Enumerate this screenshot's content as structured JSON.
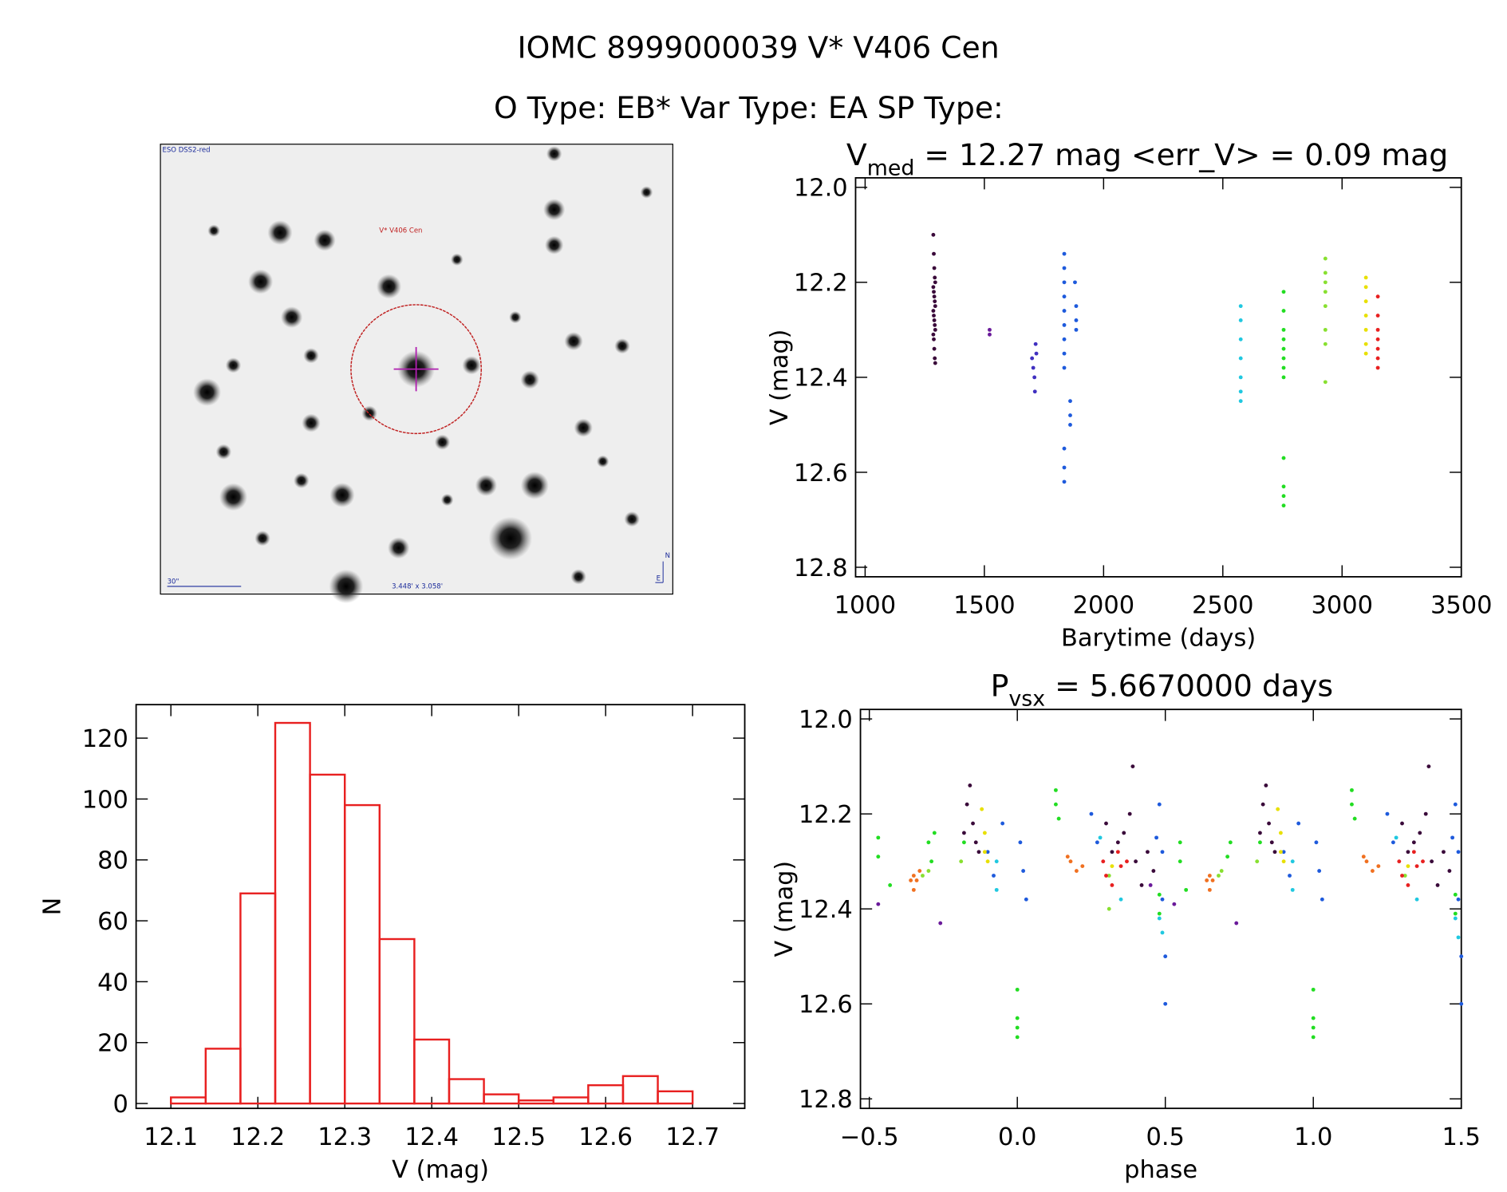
{
  "title": "IOMC 8999000039   V* V406 Cen",
  "subtitle": "O Type: EB*  Var Type: EA  SP Type:",
  "image": {
    "survey": "ESO DSS2-red",
    "target": "V* V406 Cen",
    "scale": "30\"",
    "size": "3.448' x 3.058'",
    "north": "N",
    "east": "E"
  },
  "chart_data": [
    {
      "type": "scatter",
      "title": "V",
      "title_sub": "med",
      "title_rest": " = 12.27 mag <err_V> = 0.09 mag",
      "x_label": "Barytime (days)",
      "y_label": "V (mag)",
      "xlim": [
        960,
        3500
      ],
      "ylim": [
        12.82,
        11.98
      ],
      "xticks": [
        1000,
        1500,
        2000,
        2500,
        3000,
        3500
      ],
      "yticks": [
        {
          "value": 12.0,
          "label": "12.0"
        },
        12.2,
        12.4,
        12.6,
        12.8
      ],
      "series": [
        {
          "color": "#3a0a3a",
          "x": [
            1286,
            1288,
            1290,
            1292,
            1294,
            1286,
            1288,
            1290,
            1292,
            1294,
            1286,
            1288,
            1290,
            1292,
            1294,
            1286,
            1288,
            1290,
            1292,
            1294
          ],
          "y": [
            12.1,
            12.14,
            12.17,
            12.19,
            12.2,
            12.21,
            12.22,
            12.23,
            12.24,
            12.25,
            12.26,
            12.27,
            12.28,
            12.29,
            12.3,
            12.31,
            12.32,
            12.34,
            12.36,
            12.37
          ]
        },
        {
          "color": "#6a1a9a",
          "x": [
            1522,
            1522
          ],
          "y": [
            12.3,
            12.31
          ]
        },
        {
          "color": "#4030c0",
          "x": [
            1700,
            1705,
            1710,
            1712,
            1715,
            1718
          ],
          "y": [
            12.36,
            12.38,
            12.4,
            12.43,
            12.33,
            12.35
          ]
        },
        {
          "color": "#1e5adc",
          "x": [
            1835,
            1835,
            1835,
            1835,
            1835,
            1835,
            1835,
            1835,
            1835,
            1835,
            1835,
            1835,
            1880,
            1885,
            1885,
            1885,
            1860,
            1860,
            1860
          ],
          "y": [
            12.14,
            12.17,
            12.2,
            12.23,
            12.26,
            12.29,
            12.32,
            12.35,
            12.38,
            12.55,
            12.59,
            12.62,
            12.2,
            12.25,
            12.28,
            12.3,
            12.45,
            12.48,
            12.5
          ]
        },
        {
          "color": "#20c8e0",
          "x": [
            2575,
            2575,
            2575,
            2575,
            2575,
            2575,
            2575
          ],
          "y": [
            12.25,
            12.28,
            12.32,
            12.36,
            12.4,
            12.43,
            12.45
          ]
        },
        {
          "color": "#22dd22",
          "x": [
            2755,
            2755,
            2755,
            2755,
            2755,
            2755,
            2755,
            2755,
            2755,
            2755,
            2755,
            2755
          ],
          "y": [
            12.22,
            12.26,
            12.3,
            12.32,
            12.34,
            12.36,
            12.38,
            12.4,
            12.57,
            12.63,
            12.65,
            12.67
          ]
        },
        {
          "color": "#88e030",
          "x": [
            2930,
            2930,
            2930,
            2930,
            2930,
            2930,
            2930,
            2930
          ],
          "y": [
            12.15,
            12.18,
            12.2,
            12.22,
            12.25,
            12.3,
            12.33,
            12.41
          ]
        },
        {
          "color": "#e8e000",
          "x": [
            3100,
            3100,
            3100,
            3100,
            3100,
            3100,
            3100
          ],
          "y": [
            12.19,
            12.21,
            12.24,
            12.27,
            12.3,
            12.33,
            12.35
          ]
        },
        {
          "color": "#e82020",
          "x": [
            3150,
            3150,
            3150,
            3150,
            3150,
            3150,
            3150
          ],
          "y": [
            12.23,
            12.27,
            12.3,
            12.32,
            12.34,
            12.36,
            12.38
          ]
        }
      ]
    },
    {
      "type": "scatter",
      "title": "P",
      "title_sub": "vsx",
      "title_rest": " = 5.6670000 days",
      "x_label": "phase",
      "y_label": "V (mag)",
      "xlim": [
        -0.53,
        1.5
      ],
      "ylim": [
        12.82,
        11.98
      ],
      "xticks": [
        {
          "value": -0.5,
          "label": "−0.5"
        },
        {
          "value": 0.0,
          "label": "0.0"
        },
        0.5,
        {
          "value": 1.0,
          "label": "1.0"
        },
        1.5
      ],
      "yticks": [
        {
          "value": 12.0,
          "label": "12.0"
        },
        12.2,
        12.4,
        12.6,
        12.8
      ],
      "series": [
        {
          "color": "#3a0a3a",
          "x": [
            -0.18,
            -0.17,
            -0.16,
            -0.15,
            -0.14,
            -0.13,
            0.3,
            0.32,
            0.34,
            0.36,
            0.38,
            0.39,
            0.4,
            0.42,
            0.44,
            0.46,
            0.82,
            0.83,
            0.84,
            0.85,
            0.86,
            0.87,
            1.3,
            1.32,
            1.34,
            1.36,
            1.38,
            1.39,
            1.4,
            1.42,
            1.44,
            1.46
          ],
          "y": [
            12.24,
            12.18,
            12.14,
            12.22,
            12.26,
            12.28,
            12.22,
            12.28,
            12.26,
            12.24,
            12.2,
            12.1,
            12.3,
            12.35,
            12.28,
            12.32,
            12.24,
            12.18,
            12.14,
            12.22,
            12.26,
            12.28,
            12.22,
            12.28,
            12.26,
            12.24,
            12.2,
            12.1,
            12.3,
            12.35,
            12.28,
            12.32
          ]
        },
        {
          "color": "#6a1a9a",
          "x": [
            -0.47,
            0.53,
            -0.26,
            0.74,
            0.45
          ],
          "y": [
            12.39,
            12.39,
            12.43,
            12.43,
            12.35
          ]
        },
        {
          "color": "#1e5adc",
          "x": [
            -0.1,
            -0.08,
            -0.05,
            0.01,
            0.02,
            0.03,
            0.25,
            0.27,
            0.47,
            0.48,
            0.49,
            0.49,
            0.5,
            0.5,
            0.9,
            0.92,
            0.95,
            1.01,
            1.02,
            1.03,
            1.25,
            1.27,
            1.47,
            1.48,
            1.49,
            1.49,
            1.5,
            1.5
          ],
          "y": [
            12.28,
            12.33,
            12.22,
            12.26,
            12.32,
            12.38,
            12.2,
            12.26,
            12.25,
            12.18,
            12.28,
            12.38,
            12.5,
            12.6,
            12.28,
            12.33,
            12.22,
            12.26,
            12.32,
            12.38,
            12.2,
            12.26,
            12.25,
            12.18,
            12.28,
            12.38,
            12.5,
            12.6
          ]
        },
        {
          "color": "#20c8e0",
          "x": [
            -0.07,
            -0.07,
            0.28,
            0.35,
            0.48,
            0.49,
            0.93,
            0.93,
            1.28,
            1.35,
            1.48,
            1.49
          ],
          "y": [
            12.36,
            12.3,
            12.25,
            12.38,
            12.42,
            12.45,
            12.36,
            12.3,
            12.25,
            12.38,
            12.42,
            12.46
          ]
        },
        {
          "color": "#22dd22",
          "x": [
            -0.47,
            -0.47,
            -0.43,
            -0.3,
            -0.29,
            -0.28,
            -0.18,
            0.0,
            0.0,
            0.0,
            0.0,
            0.13,
            0.13,
            0.14,
            0.48,
            0.48,
            0.55,
            0.55,
            0.57,
            0.72,
            0.71,
            0.82,
            1.0,
            1.0,
            1.0,
            1.0,
            1.13,
            1.13,
            1.14,
            1.48,
            1.48
          ],
          "y": [
            12.25,
            12.29,
            12.35,
            12.26,
            12.3,
            12.24,
            12.26,
            12.57,
            12.63,
            12.65,
            12.67,
            12.15,
            12.18,
            12.21,
            12.37,
            12.41,
            12.26,
            12.3,
            12.36,
            12.26,
            12.29,
            12.26,
            12.57,
            12.63,
            12.65,
            12.67,
            12.15,
            12.18,
            12.21,
            12.37,
            12.41
          ]
        },
        {
          "color": "#88e030",
          "x": [
            -0.3,
            -0.32,
            0.31,
            0.31,
            -0.19,
            0.69,
            0.68,
            1.31,
            0.81
          ],
          "y": [
            12.32,
            12.33,
            12.33,
            12.4,
            12.3,
            12.32,
            12.33,
            12.33,
            12.3
          ]
        },
        {
          "color": "#e8e000",
          "x": [
            -0.12,
            -0.11,
            -0.11,
            -0.1,
            0.88,
            0.89,
            0.89,
            0.9,
            0.32,
            1.32
          ],
          "y": [
            12.19,
            12.24,
            12.28,
            12.3,
            12.19,
            12.24,
            12.28,
            12.3,
            12.31,
            12.31
          ]
        },
        {
          "color": "#f07020",
          "x": [
            -0.35,
            -0.35,
            -0.34,
            -0.36,
            -0.33,
            0.17,
            0.18,
            0.2,
            0.22,
            0.65,
            0.65,
            0.66,
            0.64,
            1.17,
            1.18,
            1.2,
            1.22
          ],
          "y": [
            12.33,
            12.36,
            12.34,
            12.34,
            12.32,
            12.29,
            12.3,
            12.32,
            12.31,
            12.33,
            12.36,
            12.34,
            12.34,
            12.29,
            12.3,
            12.32,
            12.31
          ]
        },
        {
          "color": "#e82020",
          "x": [
            0.29,
            0.3,
            0.32,
            0.34,
            0.35,
            0.37,
            1.29,
            1.3,
            1.32,
            1.34,
            1.35,
            1.37
          ],
          "y": [
            12.3,
            12.33,
            12.35,
            12.28,
            12.31,
            12.3,
            12.3,
            12.33,
            12.35,
            12.28,
            12.31,
            12.3
          ]
        }
      ]
    },
    {
      "type": "histogram",
      "x_label": "V (mag)",
      "y_label": "N",
      "color": "#e82020",
      "xlim": [
        12.06,
        12.76
      ],
      "ylim": [
        -1.6,
        131
      ],
      "xticks": [
        12.1,
        12.2,
        12.3,
        12.4,
        12.5,
        12.6,
        12.7
      ],
      "yticks": [
        0,
        20,
        40,
        60,
        80,
        100,
        120
      ],
      "bins": [
        12.1,
        12.14,
        12.18,
        12.22,
        12.26,
        12.3,
        12.34,
        12.38,
        12.42,
        12.46,
        12.5,
        12.54,
        12.58,
        12.62,
        12.66,
        12.7
      ],
      "counts": [
        2,
        18,
        69,
        125,
        108,
        98,
        54,
        21,
        8,
        3,
        1,
        2,
        6,
        9,
        4
      ]
    }
  ]
}
